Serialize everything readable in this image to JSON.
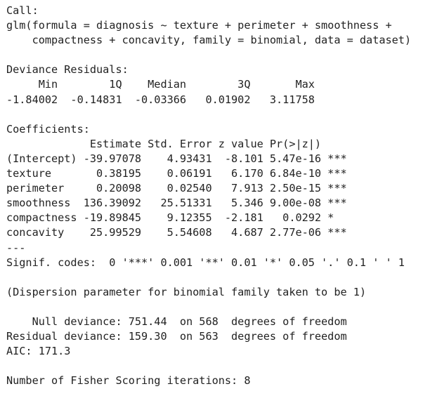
{
  "output": {
    "lines": [
      "Call:",
      "glm(formula = diagnosis ~ texture + perimeter + smoothness + ",
      "    compactness + concavity, family = binomial, data = dataset)",
      "",
      "Deviance Residuals: ",
      "     Min        1Q    Median        3Q       Max  ",
      "-1.84002  -0.14831  -0.03366   0.01902   3.11758  ",
      "",
      "Coefficients:",
      "             Estimate Std. Error z value Pr(>|z|)    ",
      "(Intercept) -39.97078    4.93431  -8.101 5.47e-16 ***",
      "texture       0.38195    0.06191   6.170 6.84e-10 ***",
      "perimeter     0.20098    0.02540   7.913 2.50e-15 ***",
      "smoothness  136.39092   25.51331   5.346 9.00e-08 ***",
      "compactness -19.89845    9.12355  -2.181   0.0292 *  ",
      "concavity    25.99529    5.54608   4.687 2.77e-06 ***",
      "---",
      "Signif. codes:  0 '***' 0.001 '**' 0.01 '*' 0.05 '.' 0.1 ' ' 1",
      "",
      "(Dispersion parameter for binomial family taken to be 1)",
      "",
      "    Null deviance: 751.44  on 568  degrees of freedom",
      "Residual deviance: 159.30  on 563  degrees of freedom",
      "AIC: 171.3",
      "",
      "Number of Fisher Scoring iterations: 8"
    ]
  }
}
